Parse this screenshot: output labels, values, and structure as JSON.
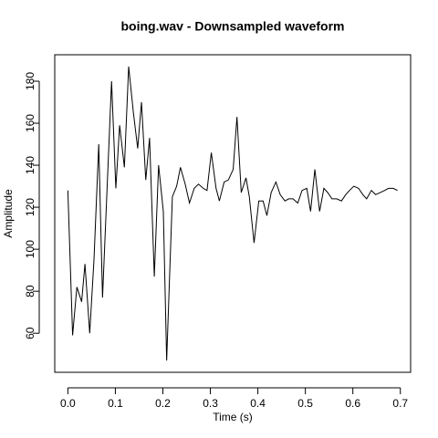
{
  "chart_data": {
    "type": "line",
    "title": "boing.wav - Downsampled waveform",
    "x_label": "Time (s)",
    "y_label": "Amplitude",
    "x": [
      0,
      0.01,
      0.019,
      0.029,
      0.036,
      0.046,
      0.055,
      0.065,
      0.073,
      0.092,
      0.101,
      0.109,
      0.119,
      0.128,
      0.138,
      0.147,
      0.155,
      0.164,
      0.172,
      0.182,
      0.191,
      0.201,
      0.208,
      0.22,
      0.229,
      0.237,
      0.247,
      0.256,
      0.266,
      0.275,
      0.285,
      0.293,
      0.302,
      0.312,
      0.319,
      0.329,
      0.338,
      0.348,
      0.356,
      0.365,
      0.375,
      0.382,
      0.392,
      0.402,
      0.411,
      0.419,
      0.428,
      0.438,
      0.447,
      0.457,
      0.465,
      0.474,
      0.484,
      0.493,
      0.503,
      0.511,
      0.52,
      0.53,
      0.539,
      0.547,
      0.556,
      0.566,
      0.576,
      0.585,
      0.593,
      0.602,
      0.612,
      0.621,
      0.629,
      0.639,
      0.648,
      0.658,
      0.667,
      0.675,
      0.685,
      0.694
    ],
    "series": [
      {
        "color": "#000000",
        "values": [
          128,
          59,
          82,
          75,
          93,
          60,
          95,
          150,
          77,
          180,
          129,
          159,
          139,
          187,
          165,
          148,
          170,
          133,
          153,
          87,
          140,
          118,
          47,
          125,
          130,
          139,
          131,
          122,
          129,
          131,
          129,
          128,
          146,
          129,
          123,
          132,
          133,
          138,
          163,
          127,
          134,
          125,
          103,
          123,
          123,
          116,
          127,
          132,
          126,
          123,
          124,
          124,
          122,
          128,
          129,
          118,
          138,
          118,
          129,
          127,
          124,
          124,
          123,
          126,
          128,
          130,
          129,
          126,
          124,
          128,
          126,
          127,
          128,
          129,
          129,
          128
        ]
      }
    ],
    "xlim": [
      -0.0276,
      0.7216
    ],
    "xticks": [
      {
        "value": 0,
        "label": "0.0"
      },
      0.1,
      0.2,
      0.3,
      0.4,
      0.5,
      0.6,
      0.7
    ],
    "ylim": [
      41.4,
      192.6
    ],
    "yticks": [
      60,
      80,
      100,
      120,
      140,
      160,
      180
    ]
  }
}
